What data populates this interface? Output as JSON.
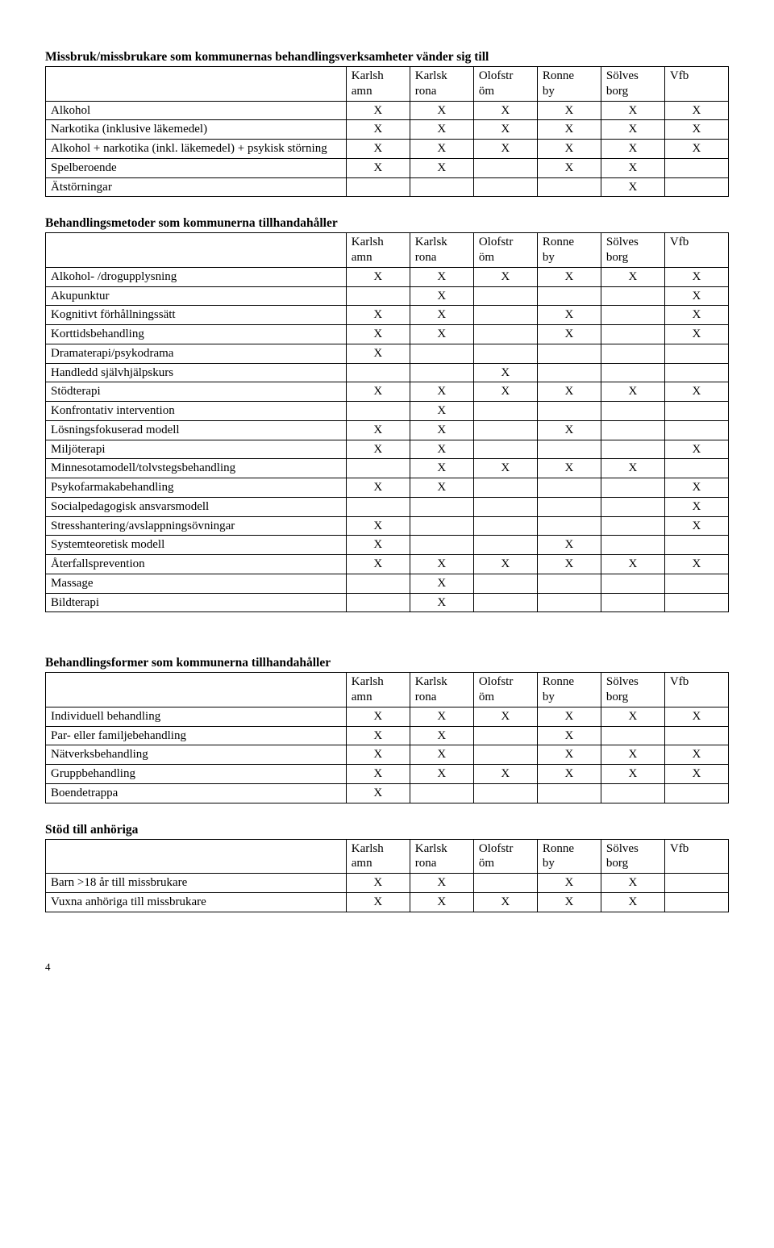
{
  "columns": [
    {
      "line1": "Karlsh",
      "line2": "amn"
    },
    {
      "line1": "Karlsk",
      "line2": "rona"
    },
    {
      "line1": "Olofstr",
      "line2": "öm"
    },
    {
      "line1": "Ronne",
      "line2": "by"
    },
    {
      "line1": "Sölves",
      "line2": "borg"
    },
    {
      "line1": "Vfb",
      "line2": ""
    }
  ],
  "tables": [
    {
      "title": "Missbruk/missbrukare som kommunernas behandlingsverksamheter vänder sig till",
      "rows": [
        {
          "label": "Alkohol",
          "marks": [
            "X",
            "X",
            "X",
            "X",
            "X",
            "X"
          ]
        },
        {
          "label": "Narkotika (inklusive läkemedel)",
          "marks": [
            "X",
            "X",
            "X",
            "X",
            "X",
            "X"
          ]
        },
        {
          "label": "Alkohol + narkotika (inkl. läkemedel) + psykisk störning",
          "marks": [
            "X",
            "X",
            "X",
            "X",
            "X",
            "X"
          ]
        },
        {
          "label": "Spelberoende",
          "marks": [
            "X",
            "X",
            "",
            "X",
            "X",
            ""
          ]
        },
        {
          "label": "Ätstörningar",
          "marks": [
            "",
            "",
            "",
            "",
            "X",
            ""
          ]
        }
      ]
    },
    {
      "title": "Behandlingsmetoder som kommunerna tillhandahåller",
      "rows": [
        {
          "label": "Alkohol- /drogupplysning",
          "marks": [
            "X",
            "X",
            "X",
            "X",
            "X",
            "X"
          ]
        },
        {
          "label": "Akupunktur",
          "marks": [
            "",
            "X",
            "",
            "",
            "",
            "X"
          ]
        },
        {
          "label": "Kognitivt förhållningssätt",
          "marks": [
            "X",
            "X",
            "",
            "X",
            "",
            "X"
          ]
        },
        {
          "label": "Korttidsbehandling",
          "marks": [
            "X",
            "X",
            "",
            "X",
            "",
            "X"
          ]
        },
        {
          "label": "Dramaterapi/psykodrama",
          "marks": [
            "X",
            "",
            "",
            "",
            "",
            ""
          ]
        },
        {
          "label": "Handledd självhjälpskurs",
          "marks": [
            "",
            "",
            "X",
            "",
            "",
            ""
          ]
        },
        {
          "label": "Stödterapi",
          "marks": [
            "X",
            "X",
            "X",
            "X",
            "X",
            "X"
          ]
        },
        {
          "label": "Konfrontativ intervention",
          "marks": [
            "",
            "X",
            "",
            "",
            "",
            ""
          ]
        },
        {
          "label": "Lösningsfokuserad modell",
          "marks": [
            "X",
            "X",
            "",
            "X",
            "",
            ""
          ]
        },
        {
          "label": "Miljöterapi",
          "marks": [
            "X",
            "X",
            "",
            "",
            "",
            "X"
          ]
        },
        {
          "label": "Minnesotamodell/tolvstegsbehandling",
          "marks": [
            "",
            "X",
            "X",
            "X",
            "X",
            ""
          ]
        },
        {
          "label": "Psykofarmakabehandling",
          "marks": [
            "X",
            "X",
            "",
            "",
            "",
            "X"
          ]
        },
        {
          "label": "Socialpedagogisk ansvarsmodell",
          "marks": [
            "",
            "",
            "",
            "",
            "",
            "X"
          ]
        },
        {
          "label": "Stresshantering/avslappningsövningar",
          "marks": [
            "X",
            "",
            "",
            "",
            "",
            "X"
          ]
        },
        {
          "label": "Systemteoretisk modell",
          "marks": [
            "X",
            "",
            "",
            "X",
            "",
            ""
          ]
        },
        {
          "label": "Återfallsprevention",
          "marks": [
            "X",
            "X",
            "X",
            "X",
            "X",
            "X"
          ]
        },
        {
          "label": "Massage",
          "marks": [
            "",
            "X",
            "",
            "",
            "",
            ""
          ]
        },
        {
          "label": "Bildterapi",
          "marks": [
            "",
            "X",
            "",
            "",
            "",
            ""
          ]
        }
      ]
    },
    {
      "title": "Behandlingsformer som kommunerna tillhandahåller",
      "rows": [
        {
          "label": "Individuell behandling",
          "marks": [
            "X",
            "X",
            "X",
            "X",
            "X",
            "X"
          ]
        },
        {
          "label": "Par- eller familjebehandling",
          "marks": [
            "X",
            "X",
            "",
            "X",
            "",
            ""
          ]
        },
        {
          "label": "Nätverksbehandling",
          "marks": [
            "X",
            "X",
            "",
            "X",
            "X",
            "X"
          ]
        },
        {
          "label": "Gruppbehandling",
          "marks": [
            "X",
            "X",
            "X",
            "X",
            "X",
            "X"
          ]
        },
        {
          "label": "Boendetrappa",
          "marks": [
            "X",
            "",
            "",
            "",
            "",
            ""
          ]
        }
      ]
    },
    {
      "title": "Stöd till anhöriga",
      "rows": [
        {
          "label": "Barn >18 år till missbrukare",
          "marks": [
            "X",
            "X",
            "",
            "X",
            "X",
            ""
          ]
        },
        {
          "label": "Vuxna anhöriga till missbrukare",
          "marks": [
            "X",
            "X",
            "X",
            "X",
            "X",
            ""
          ]
        }
      ]
    }
  ],
  "gap_before": [
    0,
    10,
    40,
    10
  ],
  "page_number": "4"
}
